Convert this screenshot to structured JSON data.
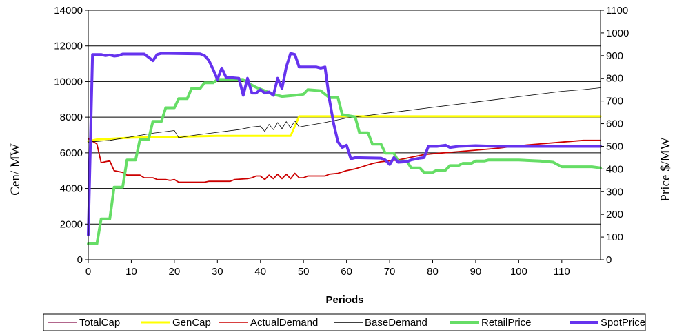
{
  "chart_data": {
    "type": "line",
    "title": "",
    "xlabel": "Periods",
    "ylabel_left": "Cen/ MW",
    "ylabel_right": "Price $/MW",
    "xlim": [
      0,
      119
    ],
    "ylim_left": [
      0,
      14000
    ],
    "ylim_right": [
      0,
      1100
    ],
    "x_ticks": [
      "0",
      "10",
      "20",
      "30",
      "40",
      "50",
      "60",
      "70",
      "80",
      "90",
      "100",
      "110"
    ],
    "y_ticks_left": [
      "0",
      "2000",
      "4000",
      "6000",
      "8000",
      "10000",
      "12000",
      "14000"
    ],
    "y_ticks_right": [
      "0",
      "100",
      "200",
      "300",
      "400",
      "500",
      "600",
      "700",
      "800",
      "900",
      "1000",
      "1100"
    ],
    "grid": "horizontal",
    "legend_position": "bottom",
    "series": [
      {
        "name": "TotalCap",
        "axis": "left",
        "color": "#993366",
        "points": []
      },
      {
        "name": "GenCap",
        "axis": "left",
        "color": "#ffff00",
        "points": [
          [
            0,
            6650
          ],
          [
            2,
            6750
          ],
          [
            10,
            6850
          ],
          [
            20,
            6900
          ],
          [
            30,
            6950
          ],
          [
            40,
            6950
          ],
          [
            47,
            6950
          ],
          [
            49,
            8050
          ],
          [
            60,
            8050
          ],
          [
            80,
            8050
          ],
          [
            100,
            8050
          ],
          [
            119,
            8050
          ]
        ]
      },
      {
        "name": "ActualDemand",
        "axis": "left",
        "color": "#cc0000",
        "points": [
          [
            0,
            6800
          ],
          [
            2,
            6500
          ],
          [
            3,
            5450
          ],
          [
            4,
            5500
          ],
          [
            5,
            5550
          ],
          [
            6,
            5000
          ],
          [
            8,
            4900
          ],
          [
            9,
            4750
          ],
          [
            12,
            4750
          ],
          [
            13,
            4600
          ],
          [
            15,
            4600
          ],
          [
            16,
            4500
          ],
          [
            18,
            4500
          ],
          [
            19,
            4450
          ],
          [
            20,
            4500
          ],
          [
            21,
            4350
          ],
          [
            27,
            4350
          ],
          [
            28,
            4400
          ],
          [
            33,
            4400
          ],
          [
            34,
            4500
          ],
          [
            37,
            4550
          ],
          [
            38,
            4600
          ],
          [
            39,
            4700
          ],
          [
            40,
            4700
          ],
          [
            41,
            4500
          ],
          [
            42,
            4750
          ],
          [
            43,
            4550
          ],
          [
            44,
            4800
          ],
          [
            45,
            4550
          ],
          [
            46,
            4800
          ],
          [
            47,
            4550
          ],
          [
            48,
            4850
          ],
          [
            49,
            4600
          ],
          [
            50,
            4600
          ],
          [
            51,
            4700
          ],
          [
            55,
            4700
          ],
          [
            56,
            4800
          ],
          [
            58,
            4850
          ],
          [
            60,
            5000
          ],
          [
            62,
            5100
          ],
          [
            64,
            5250
          ],
          [
            66,
            5400
          ],
          [
            68,
            5500
          ],
          [
            70,
            5550
          ],
          [
            72,
            5600
          ],
          [
            75,
            5750
          ],
          [
            78,
            5900
          ],
          [
            80,
            5950
          ],
          [
            85,
            6050
          ],
          [
            90,
            6150
          ],
          [
            95,
            6250
          ],
          [
            100,
            6400
          ],
          [
            105,
            6500
          ],
          [
            110,
            6600
          ],
          [
            115,
            6700
          ],
          [
            119,
            6700
          ]
        ]
      },
      {
        "name": "BaseDemand",
        "axis": "left",
        "color": "#000000",
        "points": [
          [
            0,
            6600
          ],
          [
            5,
            6700
          ],
          [
            10,
            6900
          ],
          [
            15,
            7100
          ],
          [
            20,
            7250
          ],
          [
            21,
            6850
          ],
          [
            25,
            7000
          ],
          [
            30,
            7150
          ],
          [
            35,
            7300
          ],
          [
            38,
            7450
          ],
          [
            40,
            7500
          ],
          [
            41,
            7200
          ],
          [
            42,
            7600
          ],
          [
            43,
            7300
          ],
          [
            44,
            7700
          ],
          [
            45,
            7350
          ],
          [
            46,
            7750
          ],
          [
            47,
            7400
          ],
          [
            48,
            7800
          ],
          [
            49,
            7450
          ],
          [
            55,
            7700
          ],
          [
            60,
            7950
          ],
          [
            65,
            8100
          ],
          [
            70,
            8250
          ],
          [
            75,
            8400
          ],
          [
            80,
            8550
          ],
          [
            85,
            8700
          ],
          [
            90,
            8850
          ],
          [
            95,
            9000
          ],
          [
            100,
            9150
          ],
          [
            105,
            9300
          ],
          [
            110,
            9450
          ],
          [
            115,
            9550
          ],
          [
            119,
            9650
          ]
        ]
      },
      {
        "name": "RetailPrice",
        "axis": "right",
        "color": "#66dd66",
        "points": [
          [
            0,
            70
          ],
          [
            2,
            70
          ],
          [
            3,
            180
          ],
          [
            5,
            180
          ],
          [
            6,
            320
          ],
          [
            8,
            320
          ],
          [
            9,
            440
          ],
          [
            11,
            440
          ],
          [
            12,
            530
          ],
          [
            14,
            530
          ],
          [
            15,
            610
          ],
          [
            17,
            610
          ],
          [
            18,
            670
          ],
          [
            20,
            670
          ],
          [
            21,
            710
          ],
          [
            23,
            710
          ],
          [
            24,
            755
          ],
          [
            26,
            755
          ],
          [
            27,
            780
          ],
          [
            29,
            780
          ],
          [
            30,
            795
          ],
          [
            36,
            795
          ],
          [
            37,
            780
          ],
          [
            39,
            760
          ],
          [
            41,
            745
          ],
          [
            43,
            730
          ],
          [
            45,
            720
          ],
          [
            48,
            725
          ],
          [
            50,
            730
          ],
          [
            51,
            750
          ],
          [
            54,
            745
          ],
          [
            56,
            715
          ],
          [
            58,
            715
          ],
          [
            59,
            640
          ],
          [
            62,
            630
          ],
          [
            63,
            560
          ],
          [
            65,
            560
          ],
          [
            66,
            510
          ],
          [
            68,
            510
          ],
          [
            69,
            470
          ],
          [
            71,
            470
          ],
          [
            72,
            435
          ],
          [
            74,
            435
          ],
          [
            75,
            405
          ],
          [
            77,
            405
          ],
          [
            78,
            385
          ],
          [
            80,
            385
          ],
          [
            81,
            395
          ],
          [
            83,
            395
          ],
          [
            84,
            415
          ],
          [
            86,
            415
          ],
          [
            87,
            425
          ],
          [
            89,
            425
          ],
          [
            90,
            435
          ],
          [
            92,
            435
          ],
          [
            93,
            440
          ],
          [
            100,
            440
          ],
          [
            105,
            435
          ],
          [
            108,
            430
          ],
          [
            110,
            410
          ],
          [
            117,
            410
          ],
          [
            119,
            405
          ]
        ]
      },
      {
        "name": "SpotPrice",
        "axis": "right",
        "color": "#6633ee",
        "points": [
          [
            0,
            110
          ],
          [
            1,
            905
          ],
          [
            3,
            905
          ],
          [
            4,
            900
          ],
          [
            5,
            903
          ],
          [
            6,
            898
          ],
          [
            7,
            900
          ],
          [
            8,
            907
          ],
          [
            13,
            907
          ],
          [
            14,
            893
          ],
          [
            15,
            878
          ],
          [
            16,
            905
          ],
          [
            17,
            910
          ],
          [
            26,
            908
          ],
          [
            27,
            900
          ],
          [
            28,
            880
          ],
          [
            29,
            840
          ],
          [
            30,
            795
          ],
          [
            31,
            845
          ],
          [
            32,
            805
          ],
          [
            35,
            800
          ],
          [
            36,
            725
          ],
          [
            37,
            800
          ],
          [
            38,
            735
          ],
          [
            39,
            735
          ],
          [
            40,
            750
          ],
          [
            41,
            735
          ],
          [
            42,
            740
          ],
          [
            43,
            725
          ],
          [
            44,
            800
          ],
          [
            45,
            755
          ],
          [
            46,
            850
          ],
          [
            47,
            910
          ],
          [
            48,
            905
          ],
          [
            49,
            850
          ],
          [
            53,
            850
          ],
          [
            54,
            845
          ],
          [
            55,
            850
          ],
          [
            56,
            710
          ],
          [
            57,
            600
          ],
          [
            58,
            520
          ],
          [
            59,
            495
          ],
          [
            60,
            505
          ],
          [
            61,
            445
          ],
          [
            62,
            450
          ],
          [
            68,
            448
          ],
          [
            69,
            440
          ],
          [
            70,
            420
          ],
          [
            71,
            450
          ],
          [
            72,
            430
          ],
          [
            74,
            432
          ],
          [
            75,
            440
          ],
          [
            77,
            448
          ],
          [
            78,
            450
          ],
          [
            79,
            500
          ],
          [
            81,
            500
          ],
          [
            83,
            505
          ],
          [
            84,
            495
          ],
          [
            86,
            500
          ],
          [
            90,
            503
          ],
          [
            95,
            500
          ],
          [
            100,
            500
          ],
          [
            110,
            500
          ],
          [
            119,
            500
          ]
        ]
      }
    ]
  }
}
